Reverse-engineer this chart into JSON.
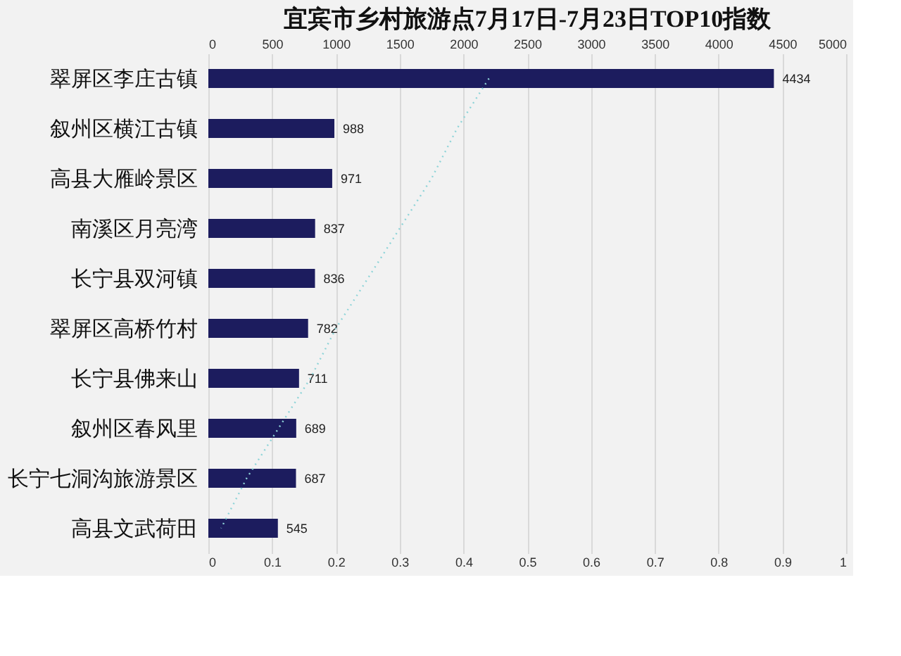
{
  "chart_data": {
    "type": "bar",
    "orientation": "horizontal",
    "title": "宜宾市乡村旅游点7月17日-7月23日TOP10指数",
    "categories": [
      "翠屏区李庄古镇",
      "叙州区横江古镇",
      "高县大雁岭景区",
      "南溪区月亮湾",
      "长宁县双河镇",
      "翠屏区高桥竹村",
      "长宁县佛来山",
      "叙州区春风里",
      "长宁七洞沟旅游景区",
      "高县文武荷田"
    ],
    "series": [
      {
        "type": "bar",
        "color": "#1c1c5e",
        "values": [
          4434,
          988,
          971,
          837,
          836,
          782,
          711,
          689,
          687,
          545
        ],
        "value_labels": [
          "4434",
          "988",
          "971",
          "837",
          "836",
          "782",
          "711",
          "689",
          "687",
          "545"
        ]
      },
      {
        "type": "line",
        "axis": "x2",
        "color": "#8fd4d8",
        "line_style": "dotted",
        "marker": "none",
        "values": [
          0.44,
          0.39,
          0.35,
          0.3,
          0.25,
          0.2,
          0.16,
          0.11,
          0.06,
          0.02
        ]
      }
    ],
    "xlim": [
      0,
      5000
    ],
    "xticks": [
      0,
      500,
      1000,
      1500,
      2000,
      2500,
      3000,
      3500,
      4000,
      4500,
      5000
    ],
    "x2lim": [
      0,
      1
    ],
    "x2ticks": [
      0,
      0.1,
      0.2,
      0.3,
      0.4,
      0.5,
      0.6,
      0.7,
      0.8,
      0.9,
      1
    ],
    "grid": "x"
  }
}
